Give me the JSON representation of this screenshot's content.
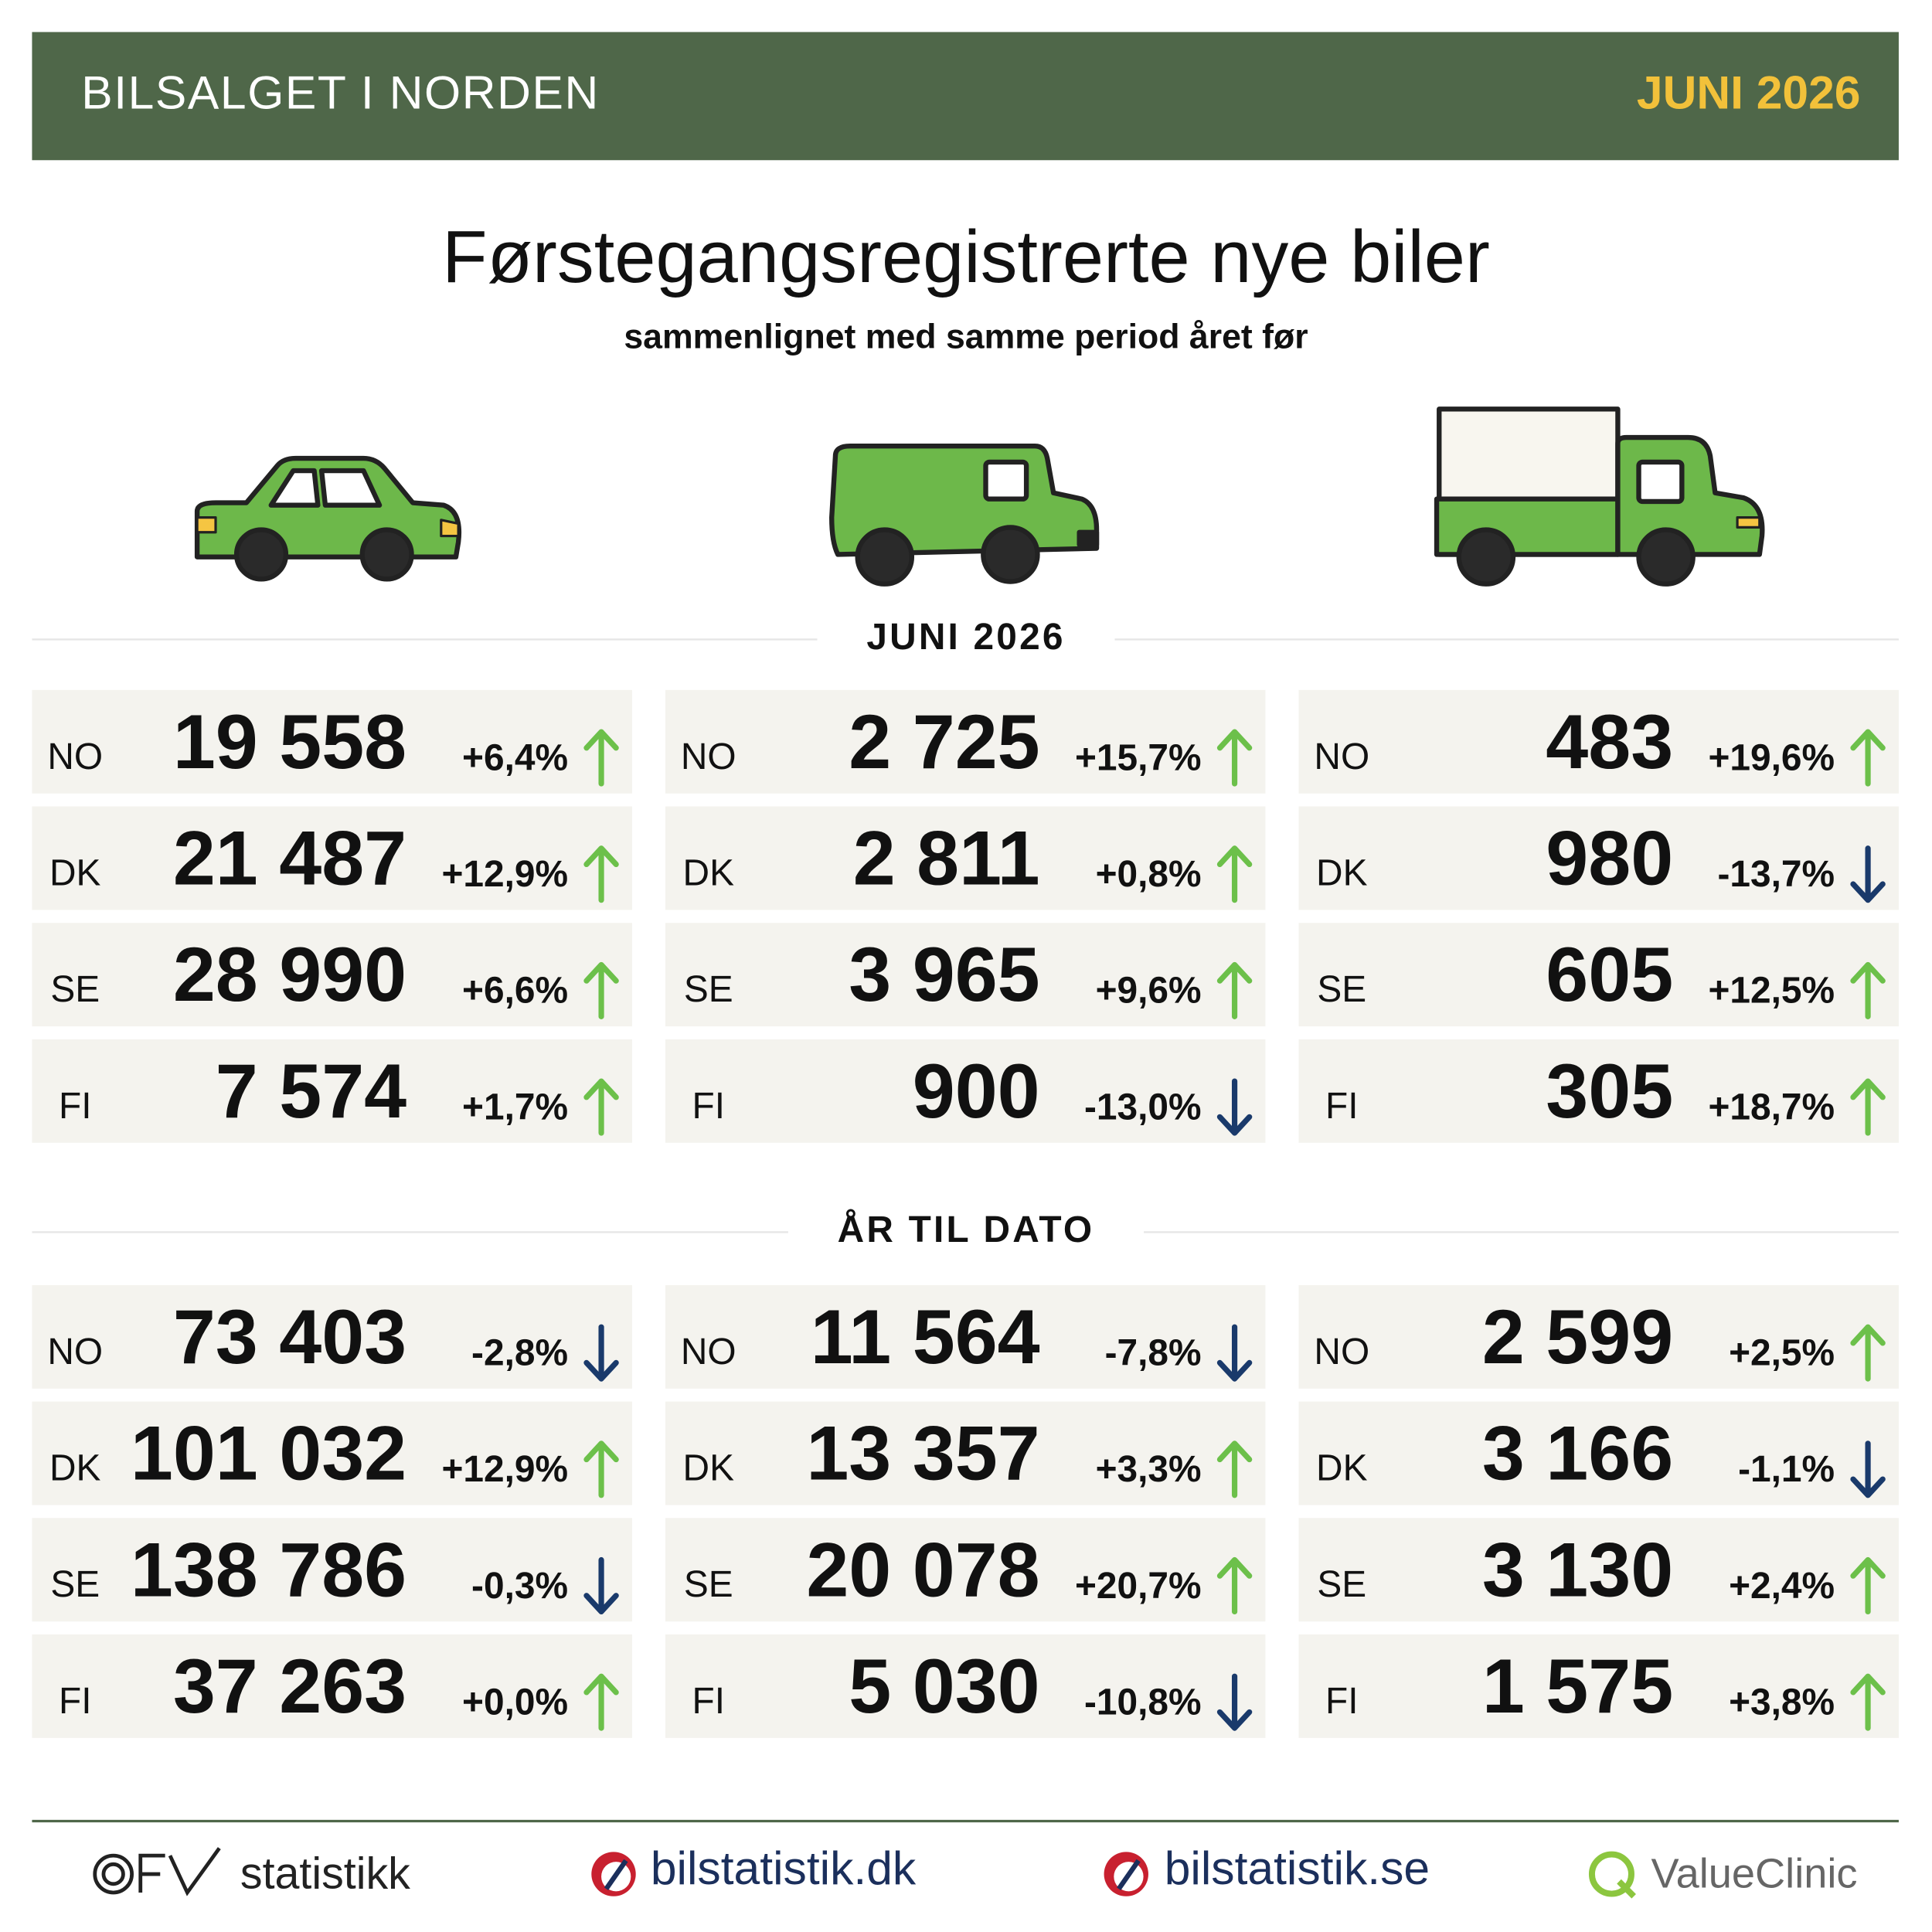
{
  "header": {
    "title": "BILSALGET I NORDEN",
    "period": "JUNI 2026"
  },
  "heading": {
    "title": "Førstegangsregistrerte nye biler",
    "subtitle": "sammenlignet med samme period året før"
  },
  "sections": [
    {
      "label": "JUNI 2026",
      "columns": [
        {
          "rows": [
            {
              "country": "NO",
              "value": "19 558",
              "change": "+6,4%",
              "trend": "up"
            },
            {
              "country": "DK",
              "value": "21 487",
              "change": "+12,9%",
              "trend": "up"
            },
            {
              "country": "SE",
              "value": "28 990",
              "change": "+6,6%",
              "trend": "up"
            },
            {
              "country": "FI",
              "value": "7 574",
              "change": "+1,7%",
              "trend": "up"
            }
          ]
        },
        {
          "rows": [
            {
              "country": "NO",
              "value": "2 725",
              "change": "+15,7%",
              "trend": "up"
            },
            {
              "country": "DK",
              "value": "2 811",
              "change": "+0,8%",
              "trend": "up"
            },
            {
              "country": "SE",
              "value": "3 965",
              "change": "+9,6%",
              "trend": "up"
            },
            {
              "country": "FI",
              "value": "900",
              "change": "-13,0%",
              "trend": "down"
            }
          ]
        },
        {
          "rows": [
            {
              "country": "NO",
              "value": "483",
              "change": "+19,6%",
              "trend": "up"
            },
            {
              "country": "DK",
              "value": "980",
              "change": "-13,7%",
              "trend": "down"
            },
            {
              "country": "SE",
              "value": "605",
              "change": "+12,5%",
              "trend": "up"
            },
            {
              "country": "FI",
              "value": "305",
              "change": "+18,7%",
              "trend": "up"
            }
          ]
        }
      ]
    },
    {
      "label": "ÅR TIL DATO",
      "columns": [
        {
          "rows": [
            {
              "country": "NO",
              "value": "73 403",
              "change": "-2,8%",
              "trend": "down"
            },
            {
              "country": "DK",
              "value": "101 032",
              "change": "+12,9%",
              "trend": "up"
            },
            {
              "country": "SE",
              "value": "138 786",
              "change": "-0,3%",
              "trend": "down"
            },
            {
              "country": "FI",
              "value": "37 263",
              "change": "+0,0%",
              "trend": "up"
            }
          ]
        },
        {
          "rows": [
            {
              "country": "NO",
              "value": "11 564",
              "change": "-7,8%",
              "trend": "down"
            },
            {
              "country": "DK",
              "value": "13 357",
              "change": "+3,3%",
              "trend": "up"
            },
            {
              "country": "SE",
              "value": "20 078",
              "change": "+20,7%",
              "trend": "up"
            },
            {
              "country": "FI",
              "value": "5 030",
              "change": "-10,8%",
              "trend": "down"
            }
          ]
        },
        {
          "rows": [
            {
              "country": "NO",
              "value": "2 599",
              "change": "+2,5%",
              "trend": "up"
            },
            {
              "country": "DK",
              "value": "3 166",
              "change": "-1,1%",
              "trend": "down"
            },
            {
              "country": "SE",
              "value": "3 130",
              "change": "+2,4%",
              "trend": "up"
            },
            {
              "country": "FI",
              "value": "1 575",
              "change": "+3,8%",
              "trend": "up"
            }
          ]
        }
      ]
    }
  ],
  "footer": {
    "logos": [
      "statistikk",
      "bilstatistik.dk",
      "bilstatistik.se",
      "ValueClinic"
    ]
  }
}
